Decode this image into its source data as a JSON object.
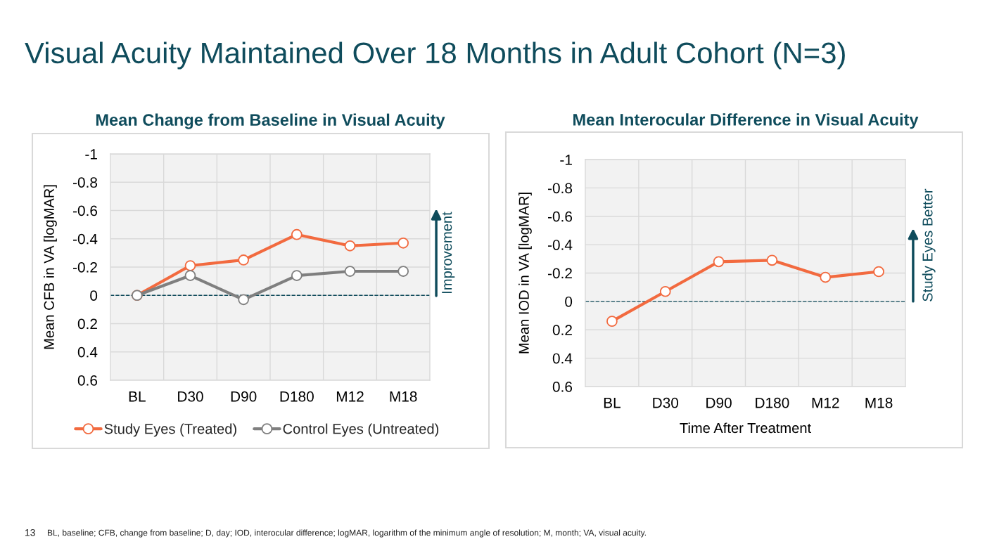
{
  "chart_data": [
    {
      "type": "other",
      "title": "Visual Acuity Maintained Over 18 Months in Adult Cohort (N=3)",
      "annotations": [
        "13",
        "BL, baseline; CFB, change from baseline; D, day; IOD, interocular difference; logMAR, logarithm of the minimum angle of resolution; M, month; VA, visual acuity."
      ]
    },
    {
      "type": "line",
      "title": "Mean Change from Baseline in Visual Acuity",
      "ylabel": "Mean CFB in VA [logMAR]",
      "categories": [
        "BL",
        "D30",
        "D90",
        "D180",
        "M12",
        "M18"
      ],
      "series": [
        {
          "name": "Study Eyes (Treated)",
          "color": "#f26a3f",
          "values": [
            0,
            -0.21,
            -0.25,
            -0.43,
            -0.35,
            -0.37
          ]
        },
        {
          "name": "Control Eyes (Untreated)",
          "color": "#7f7f7f",
          "values": [
            0,
            -0.14,
            0.03,
            -0.14,
            -0.17,
            -0.17
          ]
        }
      ],
      "ylim": [
        0.6,
        -1
      ],
      "yticks": [
        -1,
        -0.8,
        -0.6,
        -0.4,
        -0.2,
        0,
        0.2,
        0.4,
        0.6
      ],
      "grid": true,
      "legend": "bottom",
      "marker": "circle",
      "line_style": "solid",
      "ref_lines": [
        {
          "axis": "y",
          "value": 0,
          "color": "#0f4c5c",
          "line_style": "dashed"
        }
      ],
      "annotations": [
        "Improvement"
      ]
    },
    {
      "type": "line",
      "title": "Mean Interocular Difference in Visual Acuity",
      "ylabel": "Mean IOD in VA [logMAR]",
      "xlabel": "Time After Treatment",
      "categories": [
        "BL",
        "D30",
        "D90",
        "D180",
        "M12",
        "M18"
      ],
      "series": [
        {
          "color": "#f26a3f",
          "values": [
            0.14,
            -0.07,
            -0.28,
            -0.29,
            -0.17,
            -0.21
          ]
        }
      ],
      "ylim": [
        0.6,
        -1
      ],
      "yticks": [
        -1,
        -0.8,
        -0.6,
        -0.4,
        -0.2,
        0,
        0.2,
        0.4,
        0.6
      ],
      "grid": true,
      "marker": "circle",
      "line_style": "solid",
      "ref_lines": [
        {
          "axis": "y",
          "value": 0,
          "color": "#0f4c5c",
          "line_style": "dashed"
        }
      ],
      "annotations": [
        "Study Eyes Better"
      ]
    }
  ]
}
